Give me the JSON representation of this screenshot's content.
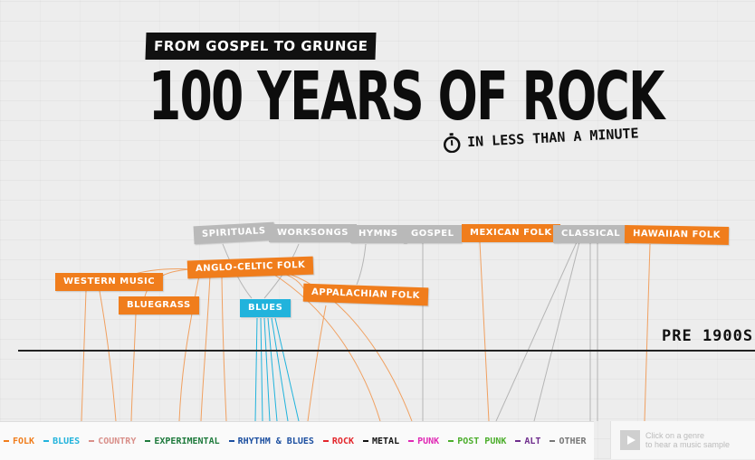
{
  "header": {
    "kicker": "FROM GOSPEL TO GRUNGE",
    "title": "100 YEARS OF ROCK",
    "subtitle": "IN LESS THAN A MINUTE"
  },
  "era_label": "PRE 1900S",
  "nodes": [
    {
      "id": "spirituals",
      "label": "SPIRITUALS",
      "style": "gray"
    },
    {
      "id": "worksongs",
      "label": "WORKSONGS",
      "style": "gray"
    },
    {
      "id": "hymns",
      "label": "HYMNS",
      "style": "gray"
    },
    {
      "id": "gospel",
      "label": "GOSPEL",
      "style": "gray"
    },
    {
      "id": "mexican",
      "label": "MEXICAN FOLK",
      "style": "orange"
    },
    {
      "id": "classical",
      "label": "CLASSICAL",
      "style": "gray"
    },
    {
      "id": "hawaiian",
      "label": "HAWAIIAN FOLK",
      "style": "orange"
    },
    {
      "id": "western",
      "label": "WESTERN MUSIC",
      "style": "orange"
    },
    {
      "id": "anglo",
      "label": "ANGLO-CELTIC FOLK",
      "style": "orange"
    },
    {
      "id": "bluegrass",
      "label": "BLUEGRASS",
      "style": "orange"
    },
    {
      "id": "blues",
      "label": "BLUES",
      "style": "blue"
    },
    {
      "id": "appalachian",
      "label": "APPALACHIAN FOLK",
      "style": "orange"
    }
  ],
  "legend": [
    {
      "label": "FOLK",
      "color": "#f07d1c"
    },
    {
      "label": "BLUES",
      "color": "#21b3dc"
    },
    {
      "label": "COUNTRY",
      "color": "#d9908a"
    },
    {
      "label": "EXPERIMENTAL",
      "color": "#1e7a3c"
    },
    {
      "label": "RHYTHM & BLUES",
      "color": "#1c4fa0"
    },
    {
      "label": "ROCK",
      "color": "#e3262b"
    },
    {
      "label": "METAL",
      "color": "#111111"
    },
    {
      "label": "PUNK",
      "color": "#e02ab5"
    },
    {
      "label": "POST PUNK",
      "color": "#4cae2c"
    },
    {
      "label": "ALT",
      "color": "#6e2c8c"
    },
    {
      "label": "OTHER",
      "color": "#777777"
    }
  ],
  "player": {
    "line1": "Click on a genre",
    "line2": "to hear a music sample"
  }
}
